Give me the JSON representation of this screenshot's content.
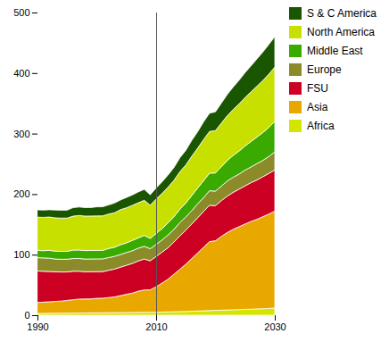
{
  "chart_data": {
    "type": "stacked_area",
    "stacked": true,
    "x": [
      1990,
      1991,
      1992,
      1993,
      1994,
      1995,
      1996,
      1997,
      1998,
      1999,
      2000,
      2001,
      2002,
      2003,
      2004,
      2005,
      2006,
      2007,
      2008,
      2009,
      2010,
      2011,
      2012,
      2013,
      2014,
      2015,
      2016,
      2017,
      2018,
      2019,
      2020,
      2021,
      2022,
      2023,
      2024,
      2025,
      2026,
      2027,
      2028,
      2029,
      2030
    ],
    "series": [
      {
        "name": "Africa",
        "color": "#d4e600",
        "values": [
          3,
          3.1,
          3.2,
          3.3,
          3.4,
          3.5,
          3.6,
          3.7,
          3.8,
          3.9,
          4,
          4.1,
          4.2,
          4.3,
          4.4,
          4.5,
          4.6,
          4.7,
          4.8,
          4.9,
          5,
          5.2,
          5.5,
          5.8,
          6,
          6.3,
          6.6,
          7,
          7.3,
          7.6,
          8,
          8.3,
          8.7,
          9,
          9.3,
          9.7,
          10,
          10.4,
          10.8,
          11.2,
          12
        ]
      },
      {
        "name": "Asia",
        "color": "#e8a800",
        "values": [
          18,
          18.5,
          19,
          19.5,
          20,
          21,
          22,
          23,
          23,
          23,
          24,
          24,
          25,
          26,
          28,
          30,
          32,
          35,
          37,
          37,
          42,
          48,
          54,
          62,
          70,
          78,
          87,
          96,
          105,
          114,
          115,
          122,
          128,
          133,
          137,
          141,
          145,
          148,
          152,
          156,
          160
        ]
      },
      {
        "name": "FSU",
        "color": "#cc0022",
        "values": [
          52,
          51,
          50,
          49,
          48,
          47,
          47,
          46,
          45,
          45,
          44,
          44,
          45,
          46,
          47,
          48,
          49,
          50,
          51,
          48,
          50,
          51,
          52,
          53,
          55,
          56,
          57,
          58,
          59,
          60,
          58,
          59,
          60,
          61,
          62,
          63,
          64,
          65,
          66,
          67,
          68
        ]
      },
      {
        "name": "Europe",
        "color": "#8b8b2a",
        "values": [
          22,
          22,
          22,
          21,
          21,
          21,
          21,
          21,
          21,
          21,
          21,
          21,
          21,
          21,
          21,
          21,
          21,
          21,
          21,
          20,
          20,
          20,
          21,
          21,
          22,
          22,
          22,
          23,
          23,
          24,
          24,
          24,
          25,
          25,
          25,
          26,
          26,
          27,
          27,
          28,
          30
        ]
      },
      {
        "name": "Middle East",
        "color": "#3aaa00",
        "values": [
          12,
          12,
          13,
          13,
          13,
          13,
          14,
          14,
          14,
          14,
          14,
          14,
          15,
          15,
          16,
          16,
          17,
          17,
          18,
          17,
          18,
          19,
          20,
          21,
          22,
          23,
          25,
          26,
          28,
          29,
          30,
          32,
          34,
          36,
          38,
          40,
          42,
          44,
          46,
          48,
          50
        ]
      },
      {
        "name": "North America",
        "color": "#c8e000",
        "values": [
          55,
          55,
          55,
          55,
          55,
          55,
          56,
          57,
          57,
          57,
          57,
          57,
          57,
          57,
          58,
          58,
          58,
          58,
          58,
          55,
          57,
          58,
          59,
          60,
          62,
          63,
          65,
          66,
          68,
          69,
          70,
          72,
          74,
          76,
          78,
          80,
          82,
          84,
          86,
          88,
          90
        ]
      },
      {
        "name": "S & C America",
        "color": "#1a5500",
        "values": [
          12,
          12,
          12,
          13,
          13,
          13,
          14,
          14,
          14,
          14,
          15,
          15,
          15,
          16,
          16,
          17,
          17,
          18,
          18,
          17,
          18,
          19,
          20,
          21,
          23,
          24,
          26,
          27,
          29,
          30,
          31,
          33,
          35,
          37,
          39,
          41,
          43,
          45,
          47,
          49,
          50
        ]
      }
    ],
    "vline": {
      "x": 2010,
      "color": "#555555"
    },
    "xlim": [
      1990,
      2030
    ],
    "xticks": [
      1990,
      2010,
      2030
    ],
    "ylim": [
      0,
      500
    ],
    "yticks": [
      0,
      100,
      200,
      300,
      400,
      500
    ],
    "grid": false,
    "legend": "right"
  }
}
